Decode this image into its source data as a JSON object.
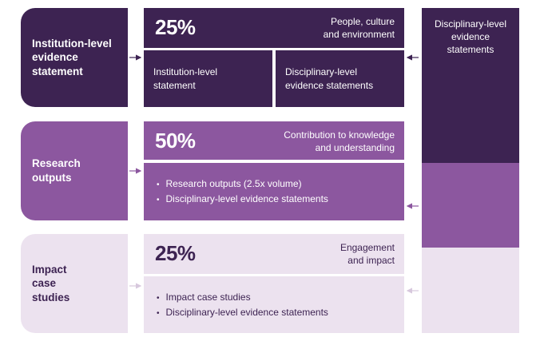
{
  "rows": [
    {
      "label": "Institution-level\nevidence\nstatement",
      "percent": "25%",
      "description": "People, culture\nand environment",
      "sub_cells": [
        "Institution-level\nstatement",
        "Disciplinary-level\nevidence statements"
      ]
    },
    {
      "label": "Research\noutputs",
      "percent": "50%",
      "description": "Contribution to knowledge\nand understanding",
      "bullets": [
        "Research outputs (2.5x volume)",
        "Disciplinary-level evidence statements"
      ]
    },
    {
      "label": "Impact\ncase\nstudies",
      "percent": "25%",
      "description": "Engagement\nand impact",
      "bullets": [
        "Impact case studies",
        "Disciplinary-level evidence statements"
      ]
    }
  ],
  "right_column": {
    "label": "Disciplinary-level\nevidence\nstatements"
  },
  "colors": {
    "dark": "#3d2352",
    "mid": "#8c579f",
    "light": "#ece2ef"
  }
}
